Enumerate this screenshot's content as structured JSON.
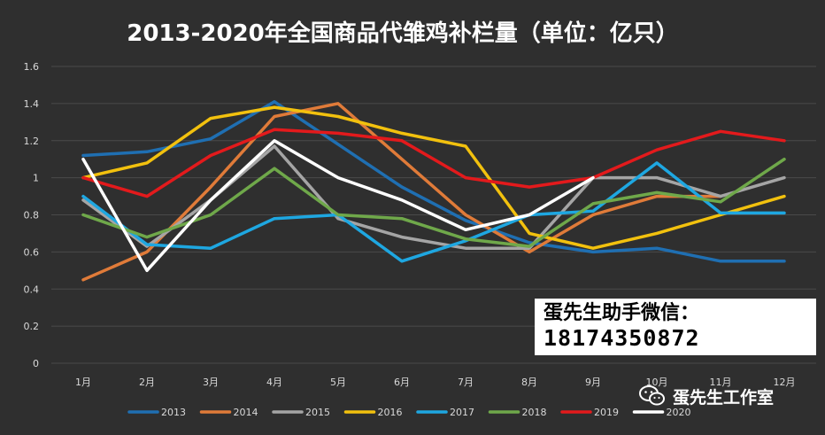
{
  "chart_data": {
    "type": "line",
    "title": "2013-2020年全国商品代雏鸡补栏量（单位：亿只）",
    "categories": [
      "1月",
      "2月",
      "3月",
      "4月",
      "5月",
      "6月",
      "7月",
      "8月",
      "9月",
      "10月",
      "11月",
      "12月"
    ],
    "ylim": [
      0,
      1.6
    ],
    "yticks": [
      "0",
      "0.2",
      "0.4",
      "0.6",
      "0.8",
      "1",
      "1.2",
      "1.4",
      "1.6"
    ],
    "grid": true,
    "legend_position": "bottom",
    "series": [
      {
        "name": "2013",
        "color": "#1f6fb2",
        "values": [
          1.12,
          1.14,
          1.21,
          1.41,
          1.18,
          0.95,
          0.77,
          0.65,
          0.6,
          0.62,
          0.55,
          0.55
        ]
      },
      {
        "name": "2014",
        "color": "#e07b39",
        "values": [
          0.45,
          0.6,
          0.95,
          1.33,
          1.4,
          1.1,
          0.8,
          0.6,
          0.8,
          0.9,
          0.9,
          null
        ]
      },
      {
        "name": "2015",
        "color": "#a5a5a5",
        "values": [
          0.88,
          0.63,
          0.88,
          1.17,
          0.78,
          0.68,
          0.62,
          0.62,
          1.0,
          1.0,
          0.9,
          1.0
        ]
      },
      {
        "name": "2016",
        "color": "#f2c10e",
        "values": [
          1.0,
          1.08,
          1.32,
          1.38,
          1.33,
          1.24,
          1.17,
          0.7,
          0.62,
          0.7,
          0.8,
          0.9
        ]
      },
      {
        "name": "2017",
        "color": "#1ea7e1",
        "values": [
          0.9,
          0.64,
          0.62,
          0.78,
          0.8,
          0.55,
          0.66,
          0.8,
          0.82,
          1.08,
          0.81,
          0.81
        ]
      },
      {
        "name": "2018",
        "color": "#6fa84a",
        "values": [
          0.8,
          0.68,
          0.8,
          1.05,
          0.8,
          0.78,
          0.67,
          0.63,
          0.86,
          0.92,
          0.87,
          1.1
        ]
      },
      {
        "name": "2019",
        "color": "#e31a1c",
        "values": [
          1.0,
          0.9,
          1.12,
          1.26,
          1.24,
          1.2,
          1.0,
          0.95,
          1.0,
          1.15,
          1.25,
          1.2
        ]
      },
      {
        "name": "2020",
        "color": "#ffffff",
        "values": [
          1.1,
          0.5,
          0.88,
          1.2,
          1.0,
          0.88,
          0.72,
          0.8,
          1.0,
          null,
          null,
          null
        ]
      }
    ]
  },
  "contact": {
    "title": "蛋先生助手微信：",
    "number": "18174350872"
  },
  "watermark": {
    "text": "蛋先生工作室",
    "icon": "wechat-icon"
  }
}
